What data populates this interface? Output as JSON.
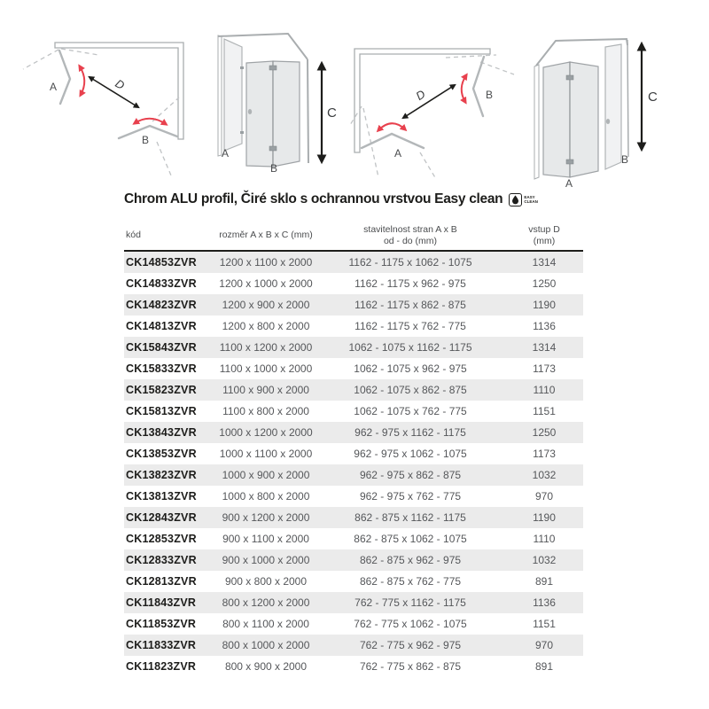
{
  "title": {
    "text": "Chrom ALU profil, Čiré sklo s ochrannou vrstvou Easy clean"
  },
  "easy_clean_badge": {
    "icon": "droplet-icon",
    "line1": "EASY",
    "line2": "CLEAN"
  },
  "diagrams": [
    {
      "name": "top-view-corner-door-right",
      "labels": {
        "a": "A",
        "b": "B",
        "d": "D"
      }
    },
    {
      "name": "front-view-folding-door-right",
      "labels": {
        "a": "A",
        "b": "B",
        "c": "C"
      }
    },
    {
      "name": "top-view-corner-door-left",
      "labels": {
        "a": "A",
        "b": "B",
        "d": "D"
      }
    },
    {
      "name": "front-view-folding-door-left",
      "labels": {
        "a": "A",
        "b": "B",
        "c": "C"
      }
    }
  ],
  "table": {
    "columns": [
      {
        "line1": "kód",
        "line2": ""
      },
      {
        "line1": "rozměr A x B x C (mm)",
        "line2": ""
      },
      {
        "line1": "stavitelnost stran A x B",
        "line2": "od - do (mm)"
      },
      {
        "line1": "vstup D",
        "line2": "(mm)"
      }
    ],
    "rows": [
      [
        "CK14853ZVR",
        "1200 x 1100 x 2000",
        "1162 - 1175 x 1062 - 1075",
        "1314"
      ],
      [
        "CK14833ZVR",
        "1200 x 1000 x 2000",
        "1162 - 1175 x 962 - 975",
        "1250"
      ],
      [
        "CK14823ZVR",
        "1200 x 900 x 2000",
        "1162 - 1175 x 862 - 875",
        "1190"
      ],
      [
        "CK14813ZVR",
        "1200 x 800 x 2000",
        "1162 - 1175 x 762 - 775",
        "1136"
      ],
      [
        "CK15843ZVR",
        "1100 x 1200 x 2000",
        "1062 - 1075 x 1162 - 1175",
        "1314"
      ],
      [
        "CK15833ZVR",
        "1100 x 1000 x 2000",
        "1062 - 1075 x 962 - 975",
        "1173"
      ],
      [
        "CK15823ZVR",
        "1100 x 900 x 2000",
        "1062 - 1075 x 862 - 875",
        "1110"
      ],
      [
        "CK15813ZVR",
        "1100 x 800 x 2000",
        "1062 - 1075 x 762 - 775",
        "1151"
      ],
      [
        "CK13843ZVR",
        "1000 x 1200 x 2000",
        "962 - 975 x 1162 - 1175",
        "1250"
      ],
      [
        "CK13853ZVR",
        "1000 x 1100 x 2000",
        "962 - 975 x 1062 - 1075",
        "1173"
      ],
      [
        "CK13823ZVR",
        "1000 x 900 x 2000",
        "962 - 975 x 862 - 875",
        "1032"
      ],
      [
        "CK13813ZVR",
        "1000 x 800 x 2000",
        "962 - 975 x 762 - 775",
        "970"
      ],
      [
        "CK12843ZVR",
        "900 x 1200 x 2000",
        "862 - 875 x 1162 - 1175",
        "1190"
      ],
      [
        "CK12853ZVR",
        "900 x 1100 x 2000",
        "862 - 875 x 1062 - 1075",
        "1110"
      ],
      [
        "CK12833ZVR",
        "900 x 1000 x 2000",
        "862 - 875 x 962 - 975",
        "1032"
      ],
      [
        "CK12813ZVR",
        "900 x 800 x 2000",
        "862 - 875 x 762 - 775",
        "891"
      ],
      [
        "CK11843ZVR",
        "800 x 1200 x 2000",
        "762 - 775 x 1162 - 1175",
        "1136"
      ],
      [
        "CK11853ZVR",
        "800 x 1100 x 2000",
        "762 - 775 x 1062 - 1075",
        "1151"
      ],
      [
        "CK11833ZVR",
        "800 x 1000 x 2000",
        "762 - 775 x 962 - 975",
        "970"
      ],
      [
        "CK11823ZVR",
        "800 x 900 x 2000",
        "762 - 775 x 862 - 875",
        "891"
      ]
    ]
  },
  "colors": {
    "accent_red": "#e8414e",
    "row_alt": "#ebebeb",
    "text_dark": "#1d1d1b",
    "text_gray": "#55575a",
    "diagram_gray": "#b3b7b9"
  }
}
